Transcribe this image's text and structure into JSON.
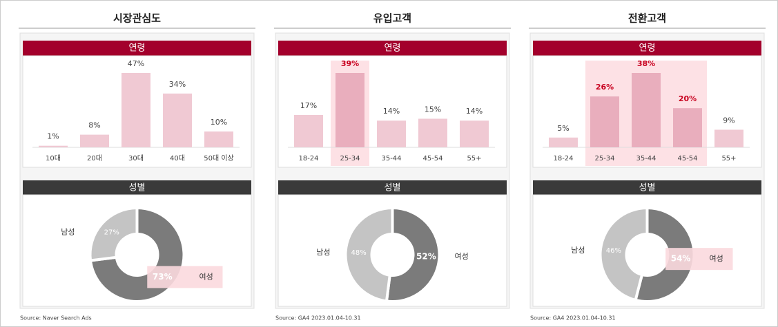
{
  "panels": [
    {
      "title": "시장관심도",
      "source": "Source: Naver Search Ads"
    },
    {
      "title": "유입고객",
      "source": "Source: GA4 2023.01.04-10.31"
    },
    {
      "title": "전환고객",
      "source": "Source: GA4 2023.01.04-10.31"
    }
  ],
  "chart_data": [
    {
      "type": "bar",
      "title": "연령",
      "categories": [
        "10대",
        "20대",
        "30대",
        "40대",
        "50대 이상"
      ],
      "values": [
        1,
        8,
        47,
        34,
        10
      ],
      "value_labels": [
        "1%",
        "8%",
        "47%",
        "34%",
        "10%"
      ],
      "color": "#f0c9d3",
      "highlight": [],
      "highlight_color": "#e9aebd"
    },
    {
      "type": "pie",
      "title": "성별",
      "categories": [
        "남성",
        "여성"
      ],
      "values": [
        27,
        73
      ],
      "value_labels": [
        "27%",
        "73%"
      ],
      "colors": [
        "#c4c4c4",
        "#7b7b7b"
      ],
      "highlight": [
        1
      ]
    },
    {
      "type": "bar",
      "title": "연령",
      "categories": [
        "18-24",
        "25-34",
        "35-44",
        "45-54",
        "55+"
      ],
      "values": [
        17,
        39,
        14,
        15,
        14
      ],
      "value_labels": [
        "17%",
        "39%",
        "14%",
        "15%",
        "14%"
      ],
      "color": "#f0c9d3",
      "highlight": [
        1
      ],
      "highlight_color": "#e9aebd"
    },
    {
      "type": "pie",
      "title": "성별",
      "categories": [
        "남성",
        "여성"
      ],
      "values": [
        48,
        52
      ],
      "value_labels": [
        "48%",
        "52%"
      ],
      "colors": [
        "#c4c4c4",
        "#7b7b7b"
      ],
      "highlight": []
    },
    {
      "type": "bar",
      "title": "연령",
      "categories": [
        "18-24",
        "25-34",
        "35-44",
        "45-54",
        "55+"
      ],
      "values": [
        5,
        26,
        38,
        20,
        9
      ],
      "value_labels": [
        "5%",
        "26%",
        "38%",
        "20%",
        "9%"
      ],
      "color": "#f0c9d3",
      "highlight": [
        1,
        2,
        3
      ],
      "highlight_color": "#e9aebd"
    },
    {
      "type": "pie",
      "title": "성별",
      "categories": [
        "남성",
        "여성"
      ],
      "values": [
        46,
        54
      ],
      "value_labels": [
        "46%",
        "54%"
      ],
      "colors": [
        "#c4c4c4",
        "#7b7b7b"
      ],
      "highlight": [
        1
      ]
    }
  ]
}
